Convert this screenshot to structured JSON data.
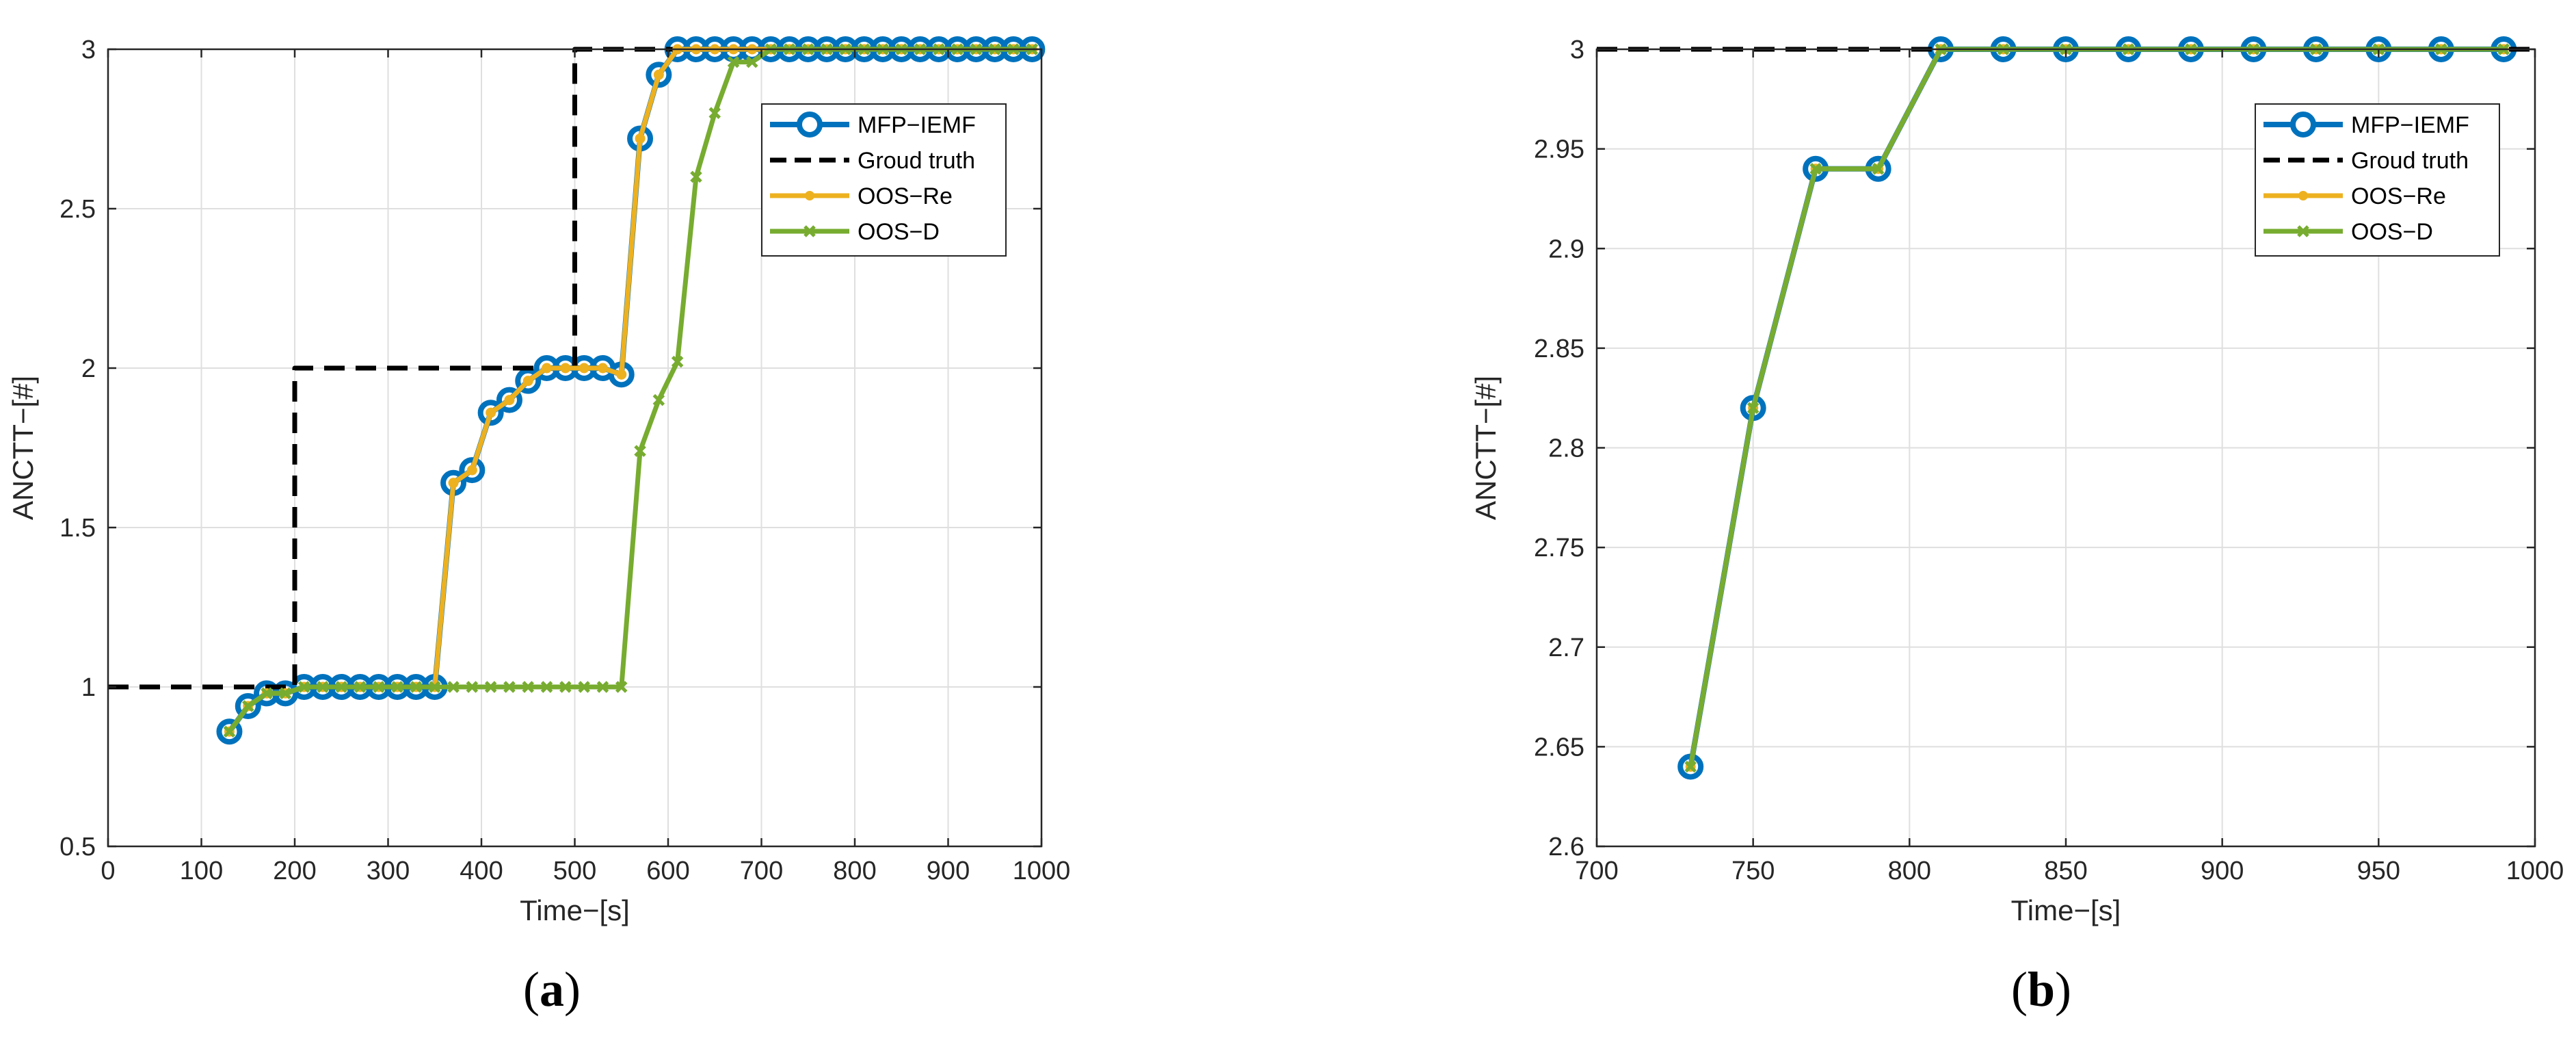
{
  "chart_data": [
    {
      "panel_label": "a",
      "type": "line",
      "xlabel": "Time−[s]",
      "ylabel": "ANCTT−[#]",
      "xlim": [
        0,
        1000
      ],
      "ylim": [
        0.5,
        3
      ],
      "xticks": [
        0,
        100,
        200,
        300,
        400,
        500,
        600,
        700,
        800,
        900,
        1000
      ],
      "xtick_labels": [
        "0",
        "100",
        "200",
        "300",
        "400",
        "500",
        "600",
        "700",
        "800",
        "900",
        "1000"
      ],
      "yticks": [
        0.5,
        1,
        1.5,
        2,
        2.5,
        3
      ],
      "ytick_labels": [
        "0.5",
        "1",
        "1.5",
        "2",
        "2.5",
        "3"
      ],
      "grid": true,
      "legend_position": "top-right",
      "series": [
        {
          "name": "MFP−IEMF",
          "color": "#0072BD",
          "marker": "circle",
          "x": [
            130,
            150,
            170,
            190,
            210,
            230,
            250,
            270,
            290,
            310,
            330,
            350,
            370,
            390,
            410,
            430,
            450,
            470,
            490,
            510,
            530,
            550,
            570,
            590,
            610,
            630,
            650,
            670,
            690,
            710,
            730,
            750,
            770,
            790,
            810,
            830,
            850,
            870,
            890,
            910,
            930,
            950,
            970,
            990
          ],
          "y": [
            0.86,
            0.94,
            0.98,
            0.98,
            1,
            1,
            1,
            1,
            1,
            1,
            1,
            1,
            1.64,
            1.68,
            1.86,
            1.9,
            1.96,
            2,
            2,
            2,
            2,
            1.98,
            2.72,
            2.92,
            3,
            3,
            3,
            3,
            3,
            3,
            3,
            3,
            3,
            3,
            3,
            3,
            3,
            3,
            3,
            3,
            3,
            3,
            3,
            3
          ]
        },
        {
          "name": "Groud truth",
          "color": "#000000",
          "style": "dashed",
          "x": [
            0,
            200,
            200,
            500,
            500,
            1000
          ],
          "y": [
            1,
            1,
            2,
            2,
            3,
            3
          ]
        },
        {
          "name": "OOS−Re",
          "color": "#EDB120",
          "marker": "dot",
          "x": [
            130,
            150,
            170,
            190,
            210,
            230,
            250,
            270,
            290,
            310,
            330,
            350,
            370,
            390,
            410,
            430,
            450,
            470,
            490,
            510,
            530,
            550,
            570,
            590,
            610,
            630,
            650,
            670,
            690,
            710,
            730,
            750,
            770,
            790,
            810,
            830,
            850,
            870,
            890,
            910,
            930,
            950,
            970,
            990
          ],
          "y": [
            0.86,
            0.94,
            0.98,
            0.98,
            1,
            1,
            1,
            1,
            1,
            1,
            1,
            1,
            1.64,
            1.68,
            1.86,
            1.9,
            1.96,
            2,
            2,
            2,
            2,
            1.98,
            2.72,
            2.92,
            3,
            3,
            3,
            3,
            3,
            3,
            3,
            3,
            3,
            3,
            3,
            3,
            3,
            3,
            3,
            3,
            3,
            3,
            3,
            3
          ]
        },
        {
          "name": "OOS−D",
          "color": "#77AC30",
          "marker": "x",
          "x": [
            130,
            150,
            170,
            190,
            210,
            230,
            250,
            270,
            290,
            310,
            330,
            350,
            370,
            390,
            410,
            430,
            450,
            470,
            490,
            510,
            530,
            550,
            570,
            590,
            610,
            630,
            650,
            670,
            690,
            710,
            730,
            750,
            770,
            790,
            810,
            830,
            850,
            870,
            890,
            910,
            930,
            950,
            970,
            990
          ],
          "y": [
            0.86,
            0.94,
            0.98,
            0.98,
            1,
            1,
            1,
            1,
            1,
            1,
            1,
            1,
            1,
            1,
            1,
            1,
            1,
            1,
            1,
            1,
            1,
            1,
            1.74,
            1.9,
            2.02,
            2.6,
            2.8,
            2.96,
            2.96,
            3,
            3,
            3,
            3,
            3,
            3,
            3,
            3,
            3,
            3,
            3,
            3,
            3,
            3,
            3
          ]
        }
      ]
    },
    {
      "panel_label": "b",
      "type": "line",
      "xlabel": "Time−[s]",
      "ylabel": "ANCTT−[#]",
      "xlim": [
        700,
        1000
      ],
      "ylim": [
        2.6,
        3
      ],
      "xticks": [
        700,
        750,
        800,
        850,
        900,
        950,
        1000
      ],
      "xtick_labels": [
        "700",
        "750",
        "800",
        "850",
        "900",
        "950",
        "1000"
      ],
      "yticks": [
        2.6,
        2.65,
        2.7,
        2.75,
        2.8,
        2.85,
        2.9,
        2.95,
        3
      ],
      "ytick_labels": [
        "2.6",
        "2.65",
        "2.7",
        "2.75",
        "2.8",
        "2.85",
        "2.9",
        "2.95",
        "3"
      ],
      "grid": true,
      "legend_position": "top-right",
      "series": [
        {
          "name": "MFP−IEMF",
          "color": "#0072BD",
          "marker": "circle",
          "x": [
            730,
            750,
            770,
            790,
            810,
            830,
            850,
            870,
            890,
            910,
            930,
            950,
            970,
            990
          ],
          "y": [
            2.64,
            2.82,
            2.94,
            2.94,
            3,
            3,
            3,
            3,
            3,
            3,
            3,
            3,
            3,
            3
          ]
        },
        {
          "name": "Groud truth",
          "color": "#000000",
          "style": "dashed",
          "x": [
            700,
            1000
          ],
          "y": [
            3,
            3
          ]
        },
        {
          "name": "OOS−Re",
          "color": "#EDB120",
          "marker": "dot",
          "x": [
            730,
            750,
            770,
            790,
            810,
            830,
            850,
            870,
            890,
            910,
            930,
            950,
            970,
            990
          ],
          "y": [
            2.64,
            2.82,
            2.94,
            2.94,
            3,
            3,
            3,
            3,
            3,
            3,
            3,
            3,
            3,
            3
          ]
        },
        {
          "name": "OOS−D",
          "color": "#77AC30",
          "marker": "x",
          "x": [
            730,
            750,
            770,
            790,
            810,
            830,
            850,
            870,
            890,
            910,
            930,
            950,
            970,
            990
          ],
          "y": [
            2.64,
            2.82,
            2.94,
            2.94,
            3,
            3,
            3,
            3,
            3,
            3,
            3,
            3,
            3,
            3
          ]
        }
      ]
    }
  ],
  "panel_labels": [
    "a",
    "b"
  ]
}
